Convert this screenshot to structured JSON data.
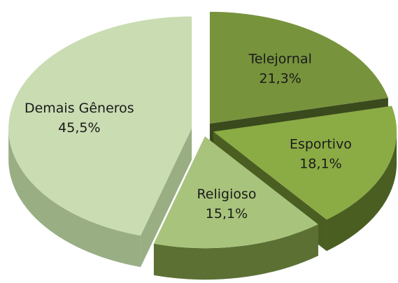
{
  "chart_data": {
    "type": "pie3d",
    "categories": [
      "Telejornal",
      "Esportivo",
      "Religioso",
      "Demais Gêneros"
    ],
    "values": [
      21.3,
      18.1,
      15.1,
      45.5
    ],
    "value_labels": [
      "21,3%",
      "18,1%",
      "15,1%",
      "45,5%"
    ],
    "colors": [
      "#77933c",
      "#8bab45",
      "#a8c47c",
      "#cadcb2"
    ],
    "side_colors": [
      "#3a4a1c",
      "#4a5e22",
      "#5c7034",
      "#9aae84"
    ]
  }
}
